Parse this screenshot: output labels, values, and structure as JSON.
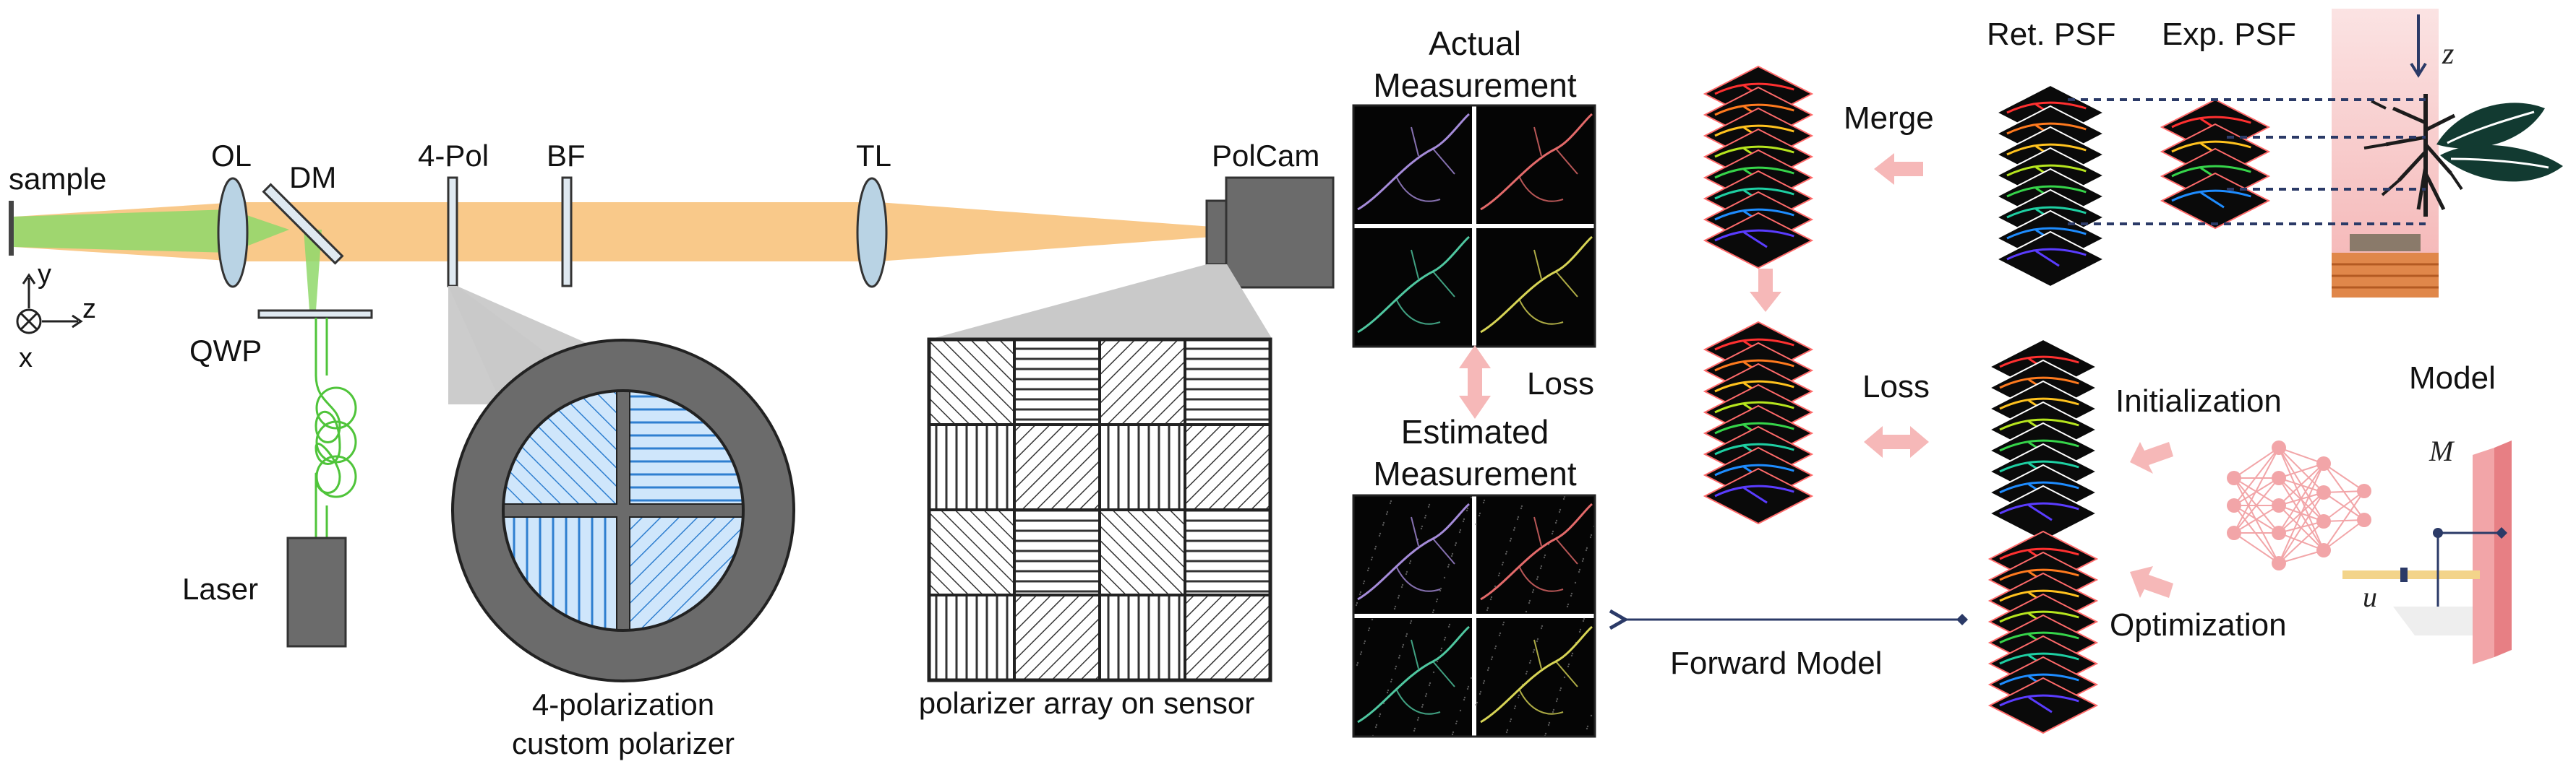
{
  "optics": {
    "sample": "sample",
    "ol": "OL",
    "dm": "DM",
    "qwp": "QWP",
    "laser": "Laser",
    "pol4": "4-Pol",
    "bf": "BF",
    "tl": "TL",
    "polcam": "PolCam",
    "axis_y": "y",
    "axis_z": "z",
    "axis_x": "x"
  },
  "insets": {
    "custom_polarizer_line1": "4-polarization",
    "custom_polarizer_line2": "custom polarizer",
    "sensor_array": "polarizer array on sensor"
  },
  "measurements": {
    "actual_line1": "Actual",
    "actual_line2": "Measurement",
    "estimated_line1": "Estimated",
    "estimated_line2": "Measurement",
    "loss": "Loss"
  },
  "pipeline": {
    "merge": "Merge",
    "loss": "Loss",
    "ret_psf": "Ret. PSF",
    "exp_psf": "Exp. PSF",
    "z_axis": "z",
    "initialization": "Initialization",
    "optimization": "Optimization",
    "model": "Model",
    "forward_model": "Forward Model",
    "m_label": "M",
    "u_label": "u"
  },
  "colors": {
    "beam_orange": "#f9c98a",
    "beam_green": "#8fd86a",
    "fiber_green": "#4fc43a",
    "pink_arrow": "#f6b8b8",
    "navy": "#2b3a67",
    "polarizer_blue": "#cfe6fb",
    "polarizer_line": "#2f7fd0",
    "housing_gray": "#6b6b6b",
    "light_gray": "#c9c9c9"
  },
  "icons": [
    "leaf-plant-icon",
    "neural-network-icon",
    "polarizer-disk-icon",
    "camera-icon",
    "laser-box-icon"
  ]
}
